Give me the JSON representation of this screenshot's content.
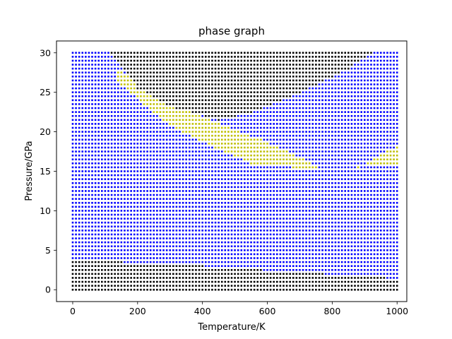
{
  "chart_data": {
    "type": "scatter",
    "title": "phase graph",
    "xlabel": "Temperature/K",
    "ylabel": "Pressure/GPa",
    "xlim": [
      -50,
      1030
    ],
    "ylim": [
      -1.5,
      31.5
    ],
    "xticks": [
      "0",
      "200",
      "400",
      "600",
      "800",
      "1000"
    ],
    "yticks": [
      "0",
      "5",
      "10",
      "15",
      "20",
      "25",
      "30"
    ],
    "grid": false,
    "marker": "s",
    "sampling": {
      "temperature": [
        0,
        1000,
        10
      ],
      "pressure": [
        0,
        30,
        0.5
      ]
    },
    "phases": [
      {
        "name": "black",
        "color": "#000000"
      },
      {
        "name": "blue",
        "color": "#0000ff"
      },
      {
        "name": "yellow",
        "color": "#bfbf00"
      }
    ],
    "boundaries": {
      "low_black_top": [
        [
          0,
          3.8
        ],
        [
          400,
          3.0
        ],
        [
          700,
          2.2
        ],
        [
          1000,
          1.4
        ]
      ],
      "upper_black_lower_edge": [
        [
          120,
          30
        ],
        [
          200,
          25.5
        ],
        [
          300,
          23.2
        ],
        [
          450,
          21.5
        ],
        [
          550,
          22.5
        ],
        [
          700,
          25.0
        ],
        [
          850,
          28.0
        ],
        [
          920,
          30
        ]
      ],
      "yellow_band_left": {
        "upper": [
          [
            130,
            28.2
          ],
          [
            300,
            23.5
          ],
          [
            450,
            21.0
          ],
          [
            580,
            19.0
          ],
          [
            700,
            16.8
          ],
          [
            760,
            15.4
          ]
        ],
        "lower": [
          [
            140,
            26.2
          ],
          [
            300,
            20.8
          ],
          [
            450,
            17.8
          ],
          [
            560,
            15.8
          ],
          [
            760,
            15.3
          ]
        ]
      },
      "yellow_band_right": {
        "upper": [
          [
            880,
            15.5
          ],
          [
            1000,
            18.2
          ]
        ],
        "lower": [
          [
            880,
            15.5
          ],
          [
            1000,
            15.7
          ]
        ]
      }
    }
  }
}
